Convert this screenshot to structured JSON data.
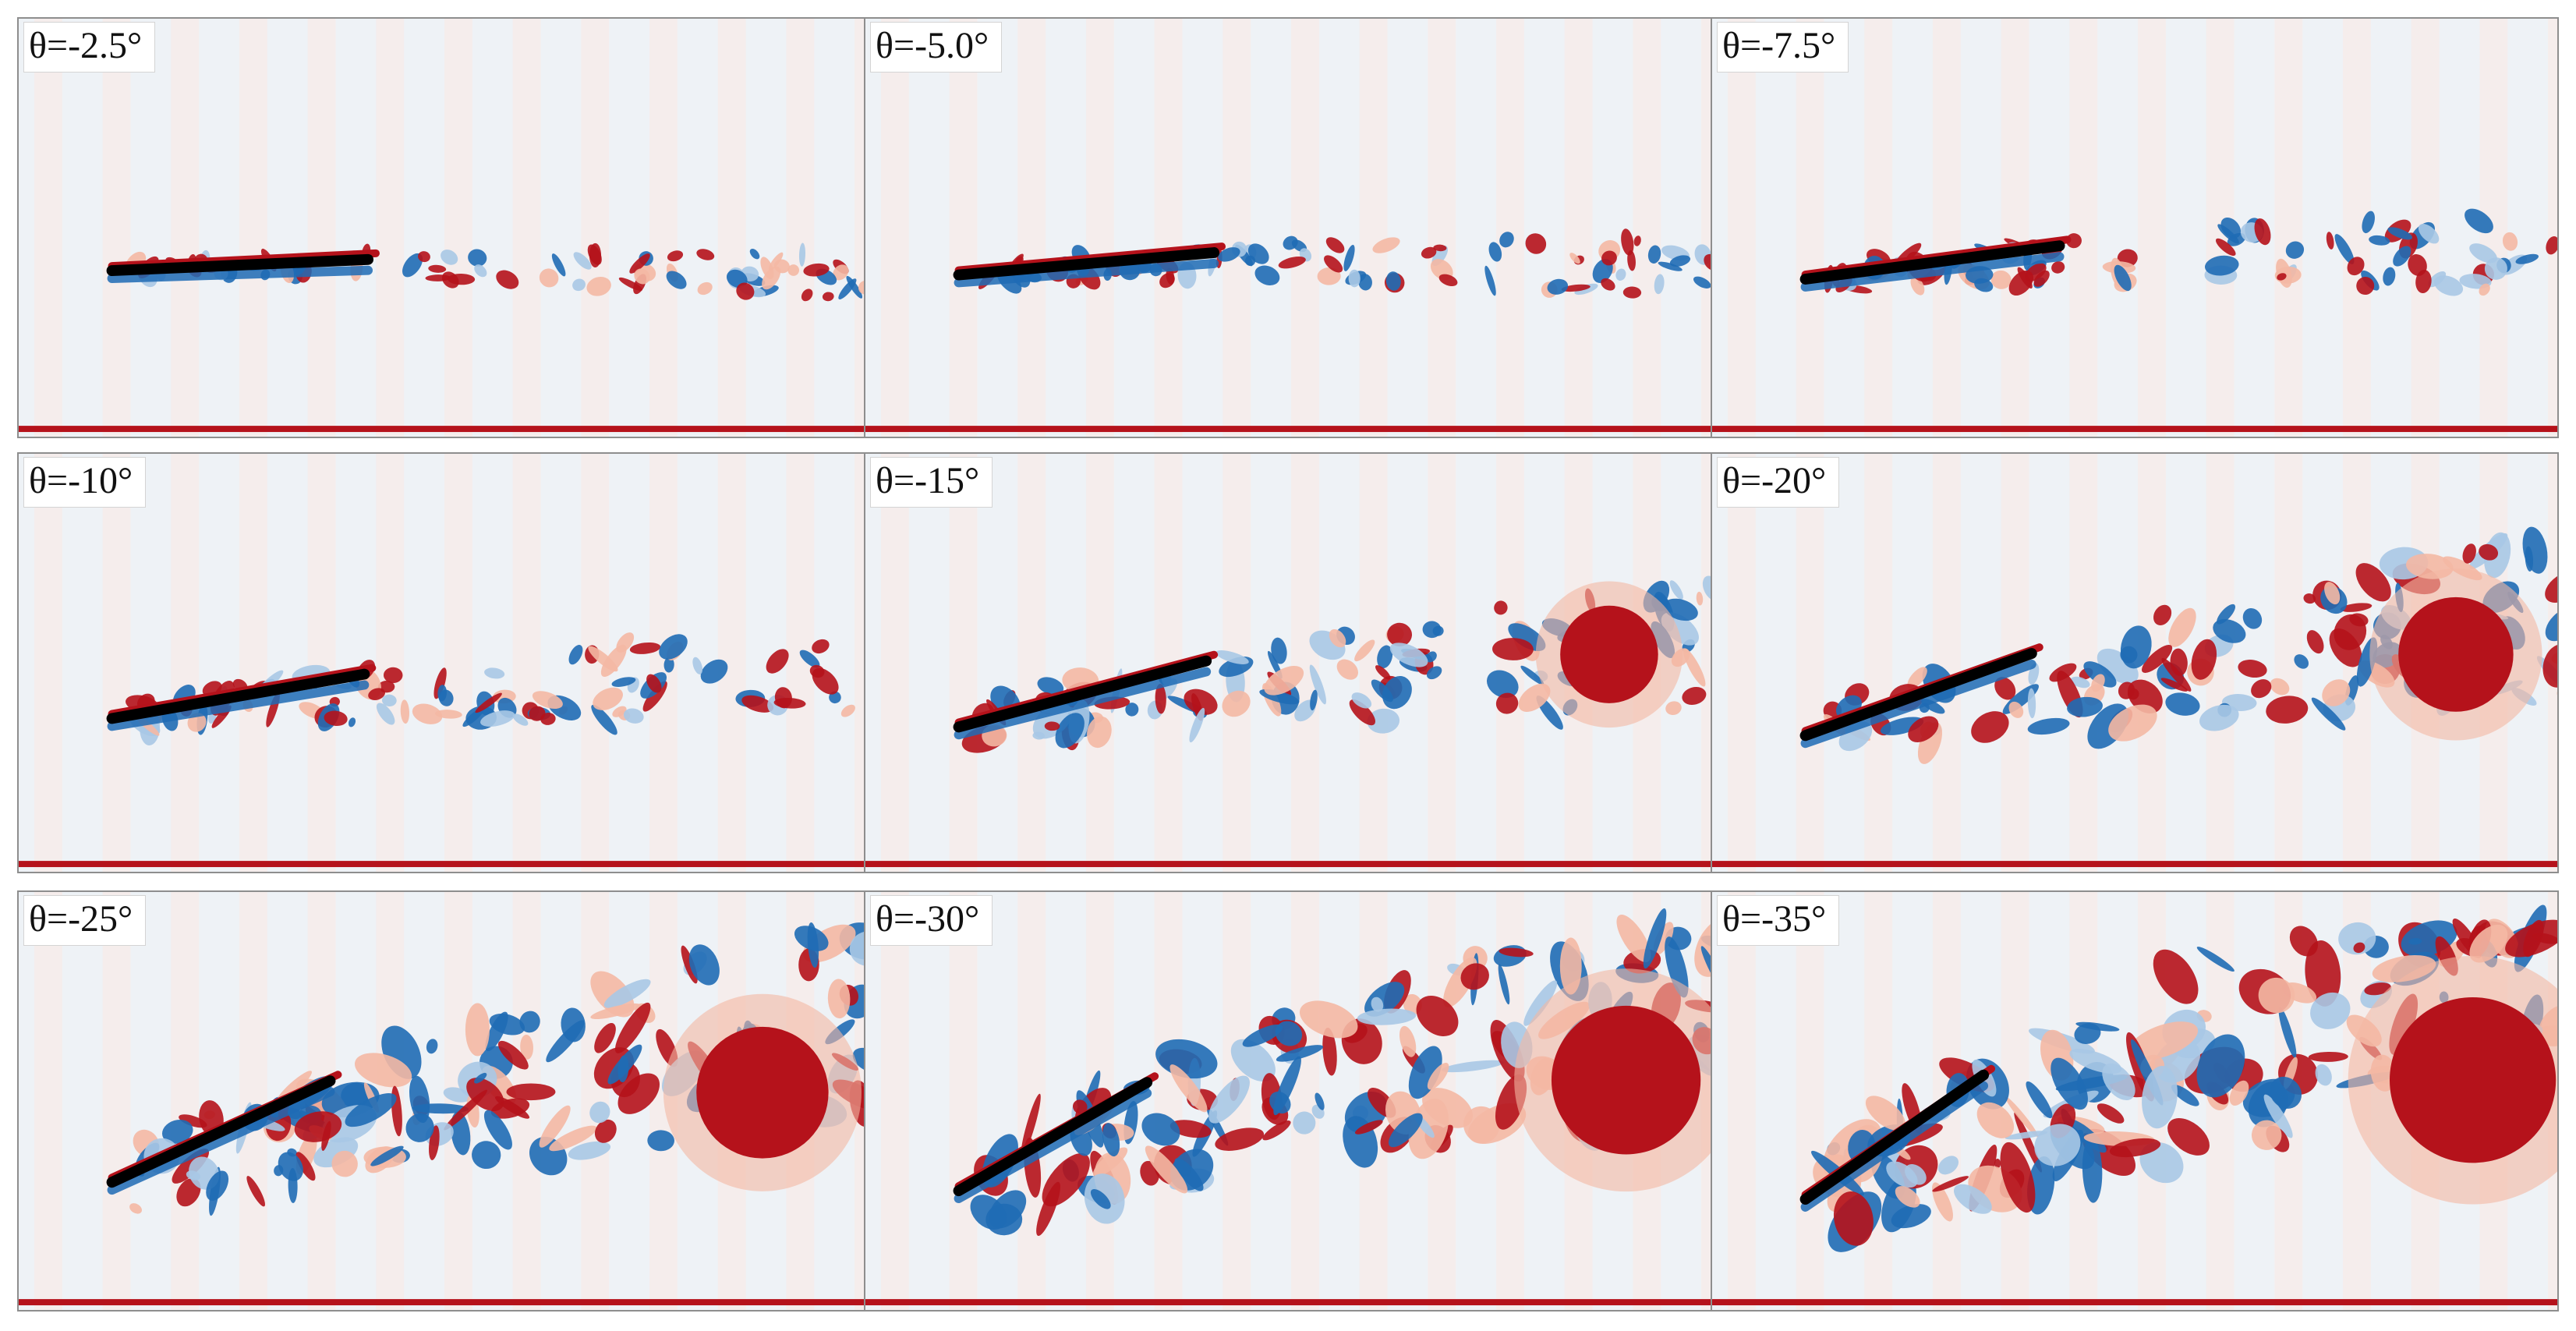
{
  "figure": {
    "title": "",
    "panels": [
      {
        "label": "θ=-2.5°",
        "angle_deg": -2.5
      },
      {
        "label": "θ=-5.0°",
        "angle_deg": -5.0
      },
      {
        "label": "θ=-7.5°",
        "angle_deg": -7.5
      },
      {
        "label": "θ=-10°",
        "angle_deg": -10
      },
      {
        "label": "θ=-15°",
        "angle_deg": -15
      },
      {
        "label": "θ=-20°",
        "angle_deg": -20
      },
      {
        "label": "θ=-25°",
        "angle_deg": -25
      },
      {
        "label": "θ=-30°",
        "angle_deg": -30
      },
      {
        "label": "θ=-35°",
        "angle_deg": -35
      }
    ]
  },
  "colors": {
    "background": "#eef2f6",
    "positive_vorticity": "#b5121b",
    "positive_light": "#f4b8a4",
    "negative_vorticity": "#1f6bb5",
    "negative_light": "#a8c8e6",
    "plate": "#000000",
    "stripe": "#fbeae4"
  }
}
